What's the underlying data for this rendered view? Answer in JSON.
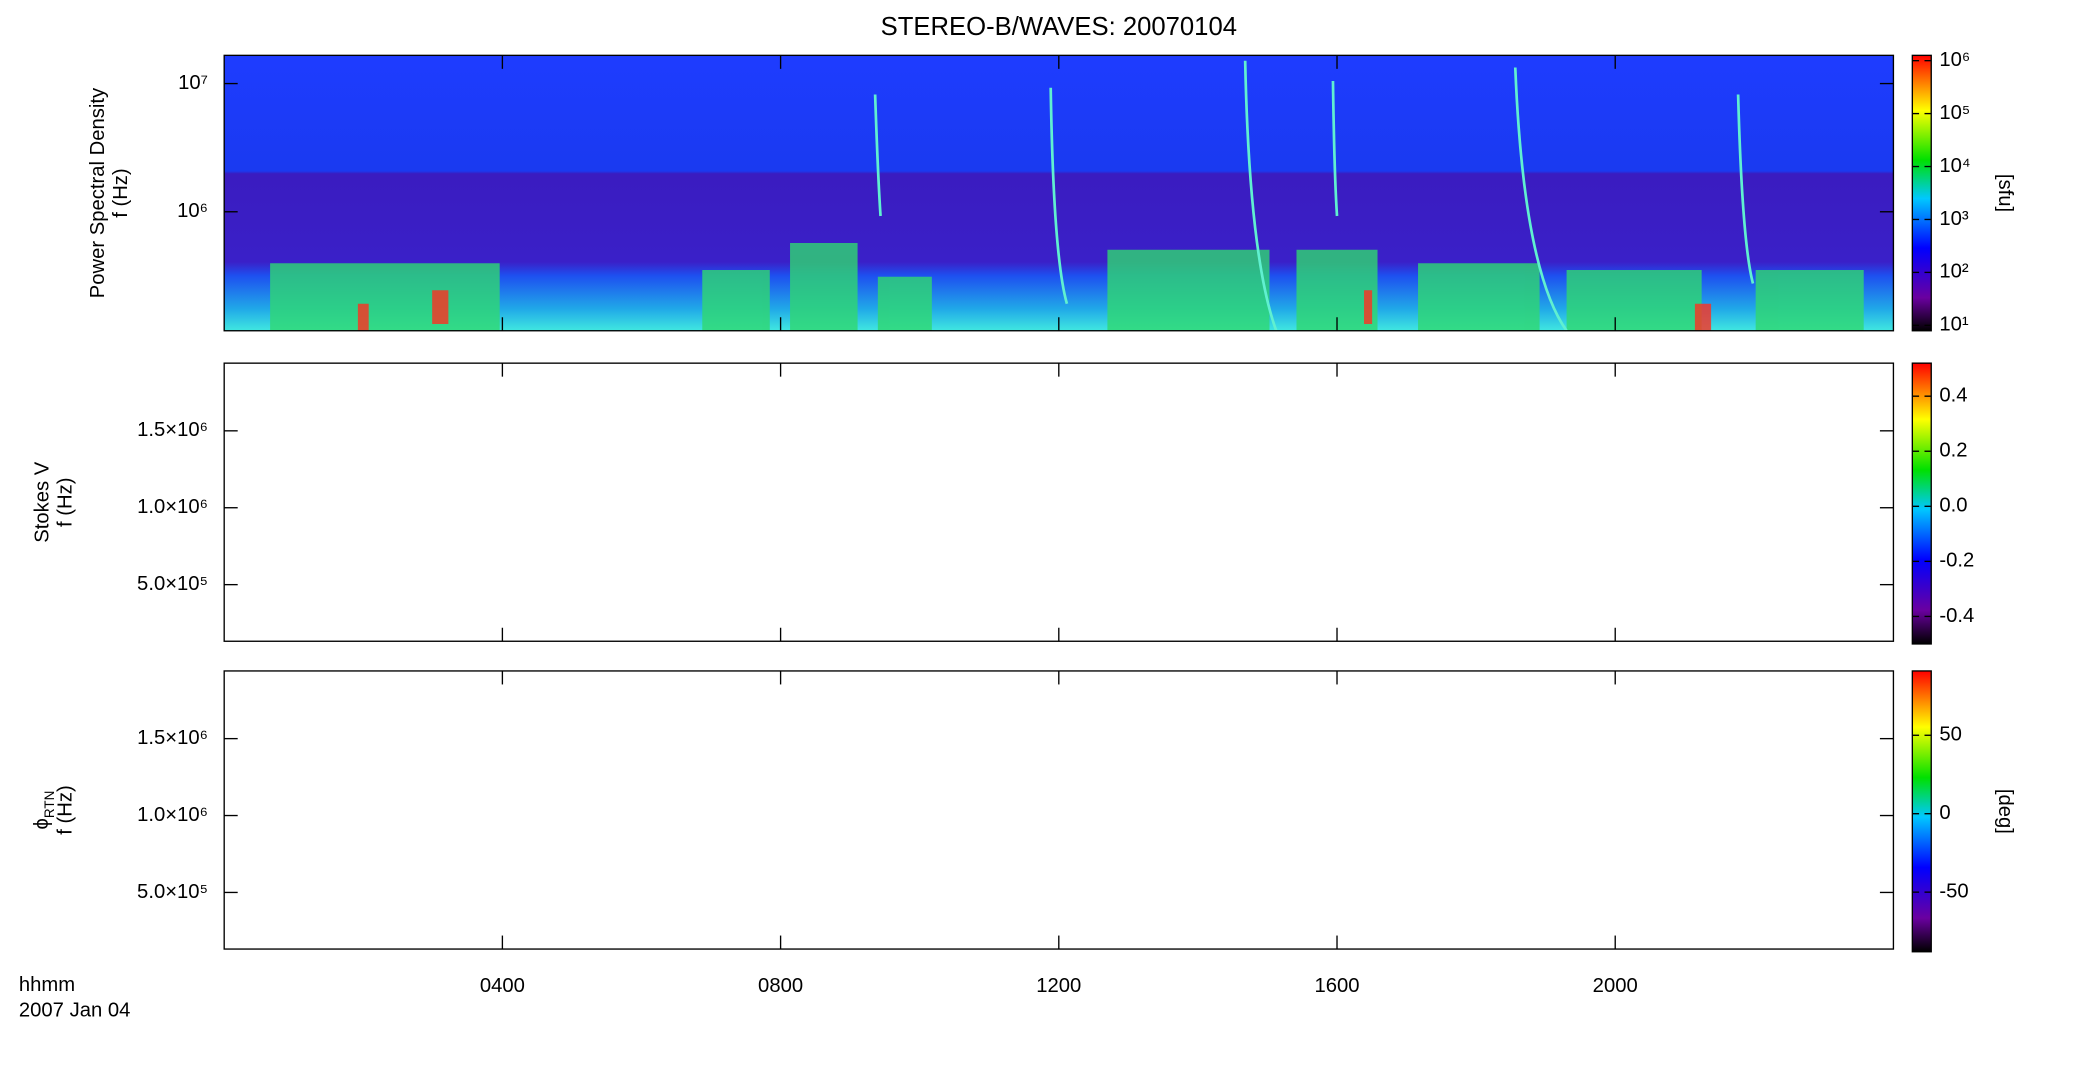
{
  "chart_data": [
    {
      "type": "spectrogram",
      "title": "STEREO-B/WAVES: 20070104",
      "ylabel": [
        "Power Spectral Density",
        "f (Hz)"
      ],
      "yscale": "log",
      "ylim": [
        118000,
        16600000
      ],
      "yticks": [
        {
          "value": 1000000,
          "label": "10⁶"
        },
        {
          "value": 10000000,
          "label": "10⁷"
        }
      ],
      "colorbar": {
        "label": "[sfu]",
        "scale": "log",
        "lim": [
          7.9,
          1260000
        ],
        "ticks": [
          {
            "value": 10,
            "label": "10¹"
          },
          {
            "value": 100,
            "label": "10²"
          },
          {
            "value": 1000,
            "label": "10³"
          },
          {
            "value": 10000,
            "label": "10⁴"
          },
          {
            "value": 100000,
            "label": "10⁵"
          },
          {
            "value": 1000000,
            "label": "10⁶"
          }
        ]
      }
    },
    {
      "type": "spectrogram",
      "ylabel": [
        "Stokes V",
        "f (Hz)"
      ],
      "yscale": "linear",
      "ylim": [
        132000,
        1940000
      ],
      "yticks": [
        {
          "value": 500000,
          "label": "5.0×10⁵"
        },
        {
          "value": 1000000,
          "label": "1.0×10⁶"
        },
        {
          "value": 1500000,
          "label": "1.5×10⁶"
        }
      ],
      "colorbar": {
        "scale": "linear",
        "lim": [
          -0.5,
          0.52
        ],
        "ticks": [
          -0.4,
          -0.2,
          {
            "value": 0,
            "label": "0.0"
          },
          0.2,
          0.4
        ]
      }
    },
    {
      "type": "spectrogram",
      "ylabel_symbol": "ϕ",
      "ylabel_subscript": "RTN",
      "ylabel_unit": "f (Hz)",
      "yscale": "linear",
      "ylim": [
        132000,
        1940000
      ],
      "yticks": [
        {
          "value": 500000,
          "label": "5.0×10⁵"
        },
        {
          "value": 1000000,
          "label": "1.0×10⁶"
        },
        {
          "value": 1500000,
          "label": "1.5×10⁶"
        }
      ],
      "colorbar": {
        "label": "[deg]",
        "scale": "linear",
        "lim": [
          -88,
          91
        ],
        "ticks": [
          -50,
          0,
          50
        ]
      },
      "xlim": [
        0,
        24
      ],
      "xticks": [
        {
          "value": 4,
          "label": "0400"
        },
        {
          "value": 8,
          "label": "0800"
        },
        {
          "value": 12,
          "label": "1200"
        },
        {
          "value": 16,
          "label": "1600"
        },
        {
          "value": 20,
          "label": "2000"
        }
      ],
      "time_label": "hhmm",
      "date_label": "2007 Jan 04"
    }
  ]
}
